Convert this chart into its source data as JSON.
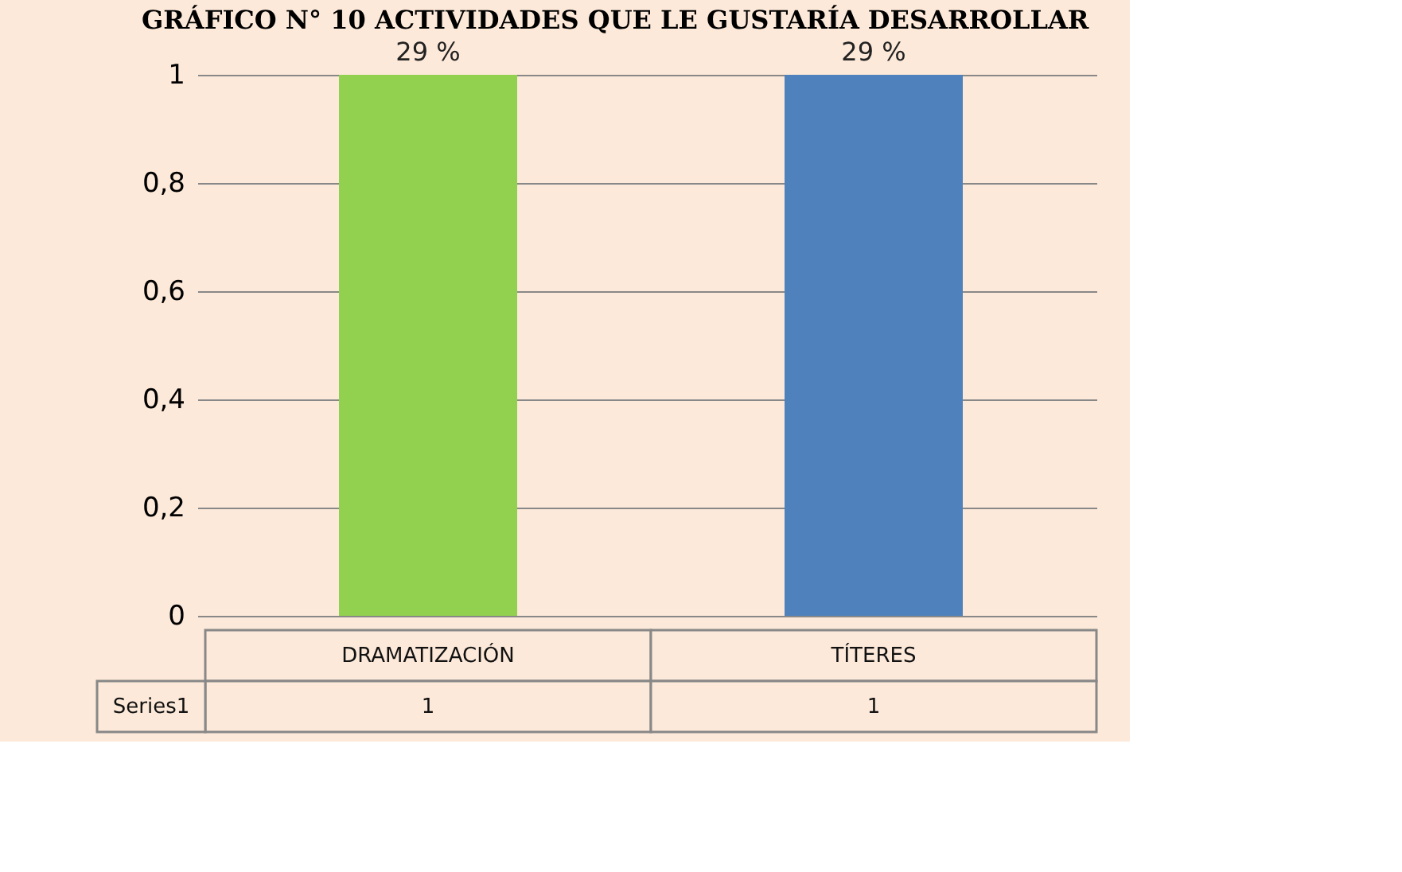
{
  "chart_data": {
    "type": "bar",
    "title": "GRÁFICO N° 10 ACTIVIDADES QUE LE GUSTARÍA DESARROLLAR",
    "categories": [
      "DRAMATIZACIÓN",
      "TÍTERES"
    ],
    "series": [
      {
        "name": "Series1",
        "values": [
          1,
          1
        ],
        "colors": [
          "#92d050",
          "#4f81bd"
        ],
        "value_labels": [
          "1",
          "1"
        ]
      }
    ],
    "annotations": [
      {
        "text": "29 %",
        "x": "DRAMATIZACIÓN",
        "y": 1
      },
      {
        "text": "29 %",
        "x": "TÍTERES",
        "y": 1
      }
    ],
    "ylim": [
      0,
      1
    ],
    "yticks": [
      0,
      {
        "value": 0.2,
        "label": "0,2"
      },
      {
        "value": 0.4,
        "label": "0,4"
      },
      {
        "value": 0.6,
        "label": "0,6"
      },
      {
        "value": 0.8,
        "label": "0,8"
      },
      1
    ],
    "grid": "y"
  }
}
